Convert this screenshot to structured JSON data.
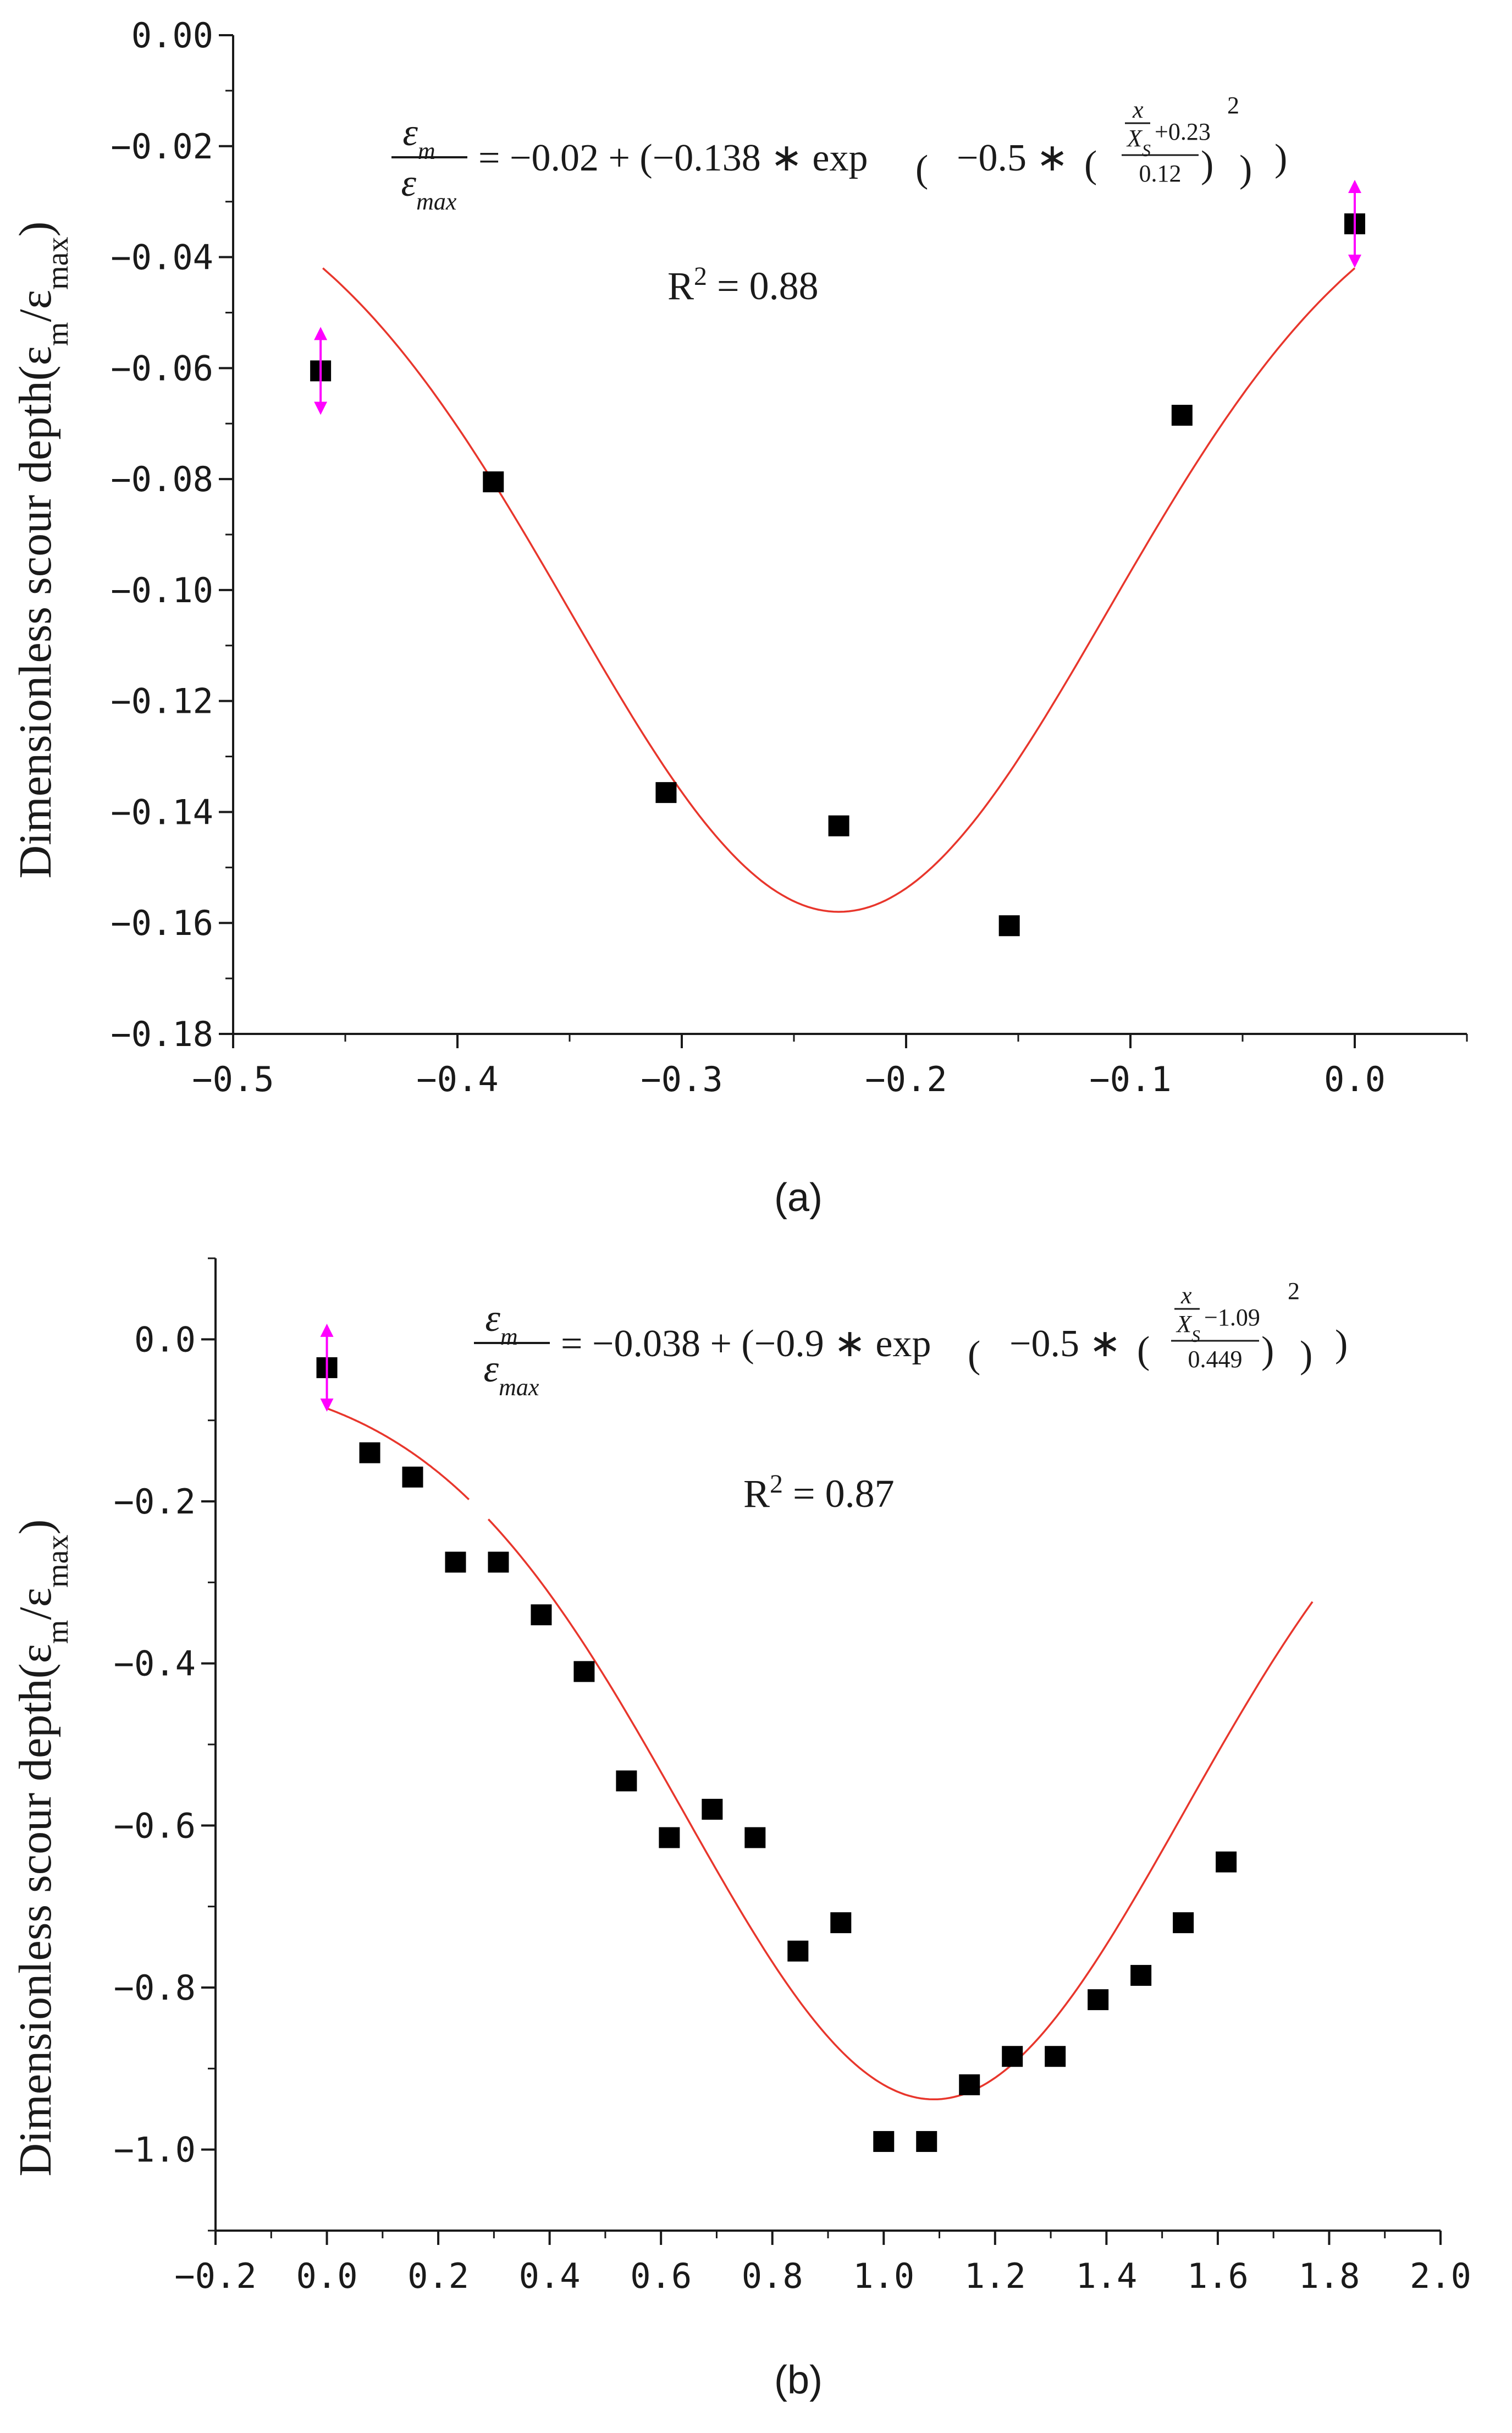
{
  "chart_data": [
    {
      "type": "scatter",
      "id": "a",
      "caption": "(a)",
      "title": "",
      "xlabel": "",
      "ylabel": "Dimensionless scour depth(ε",
      "ylabel_sub1": "m",
      "ylabel_mid": "/ε",
      "ylabel_sub2": "max",
      "ylabel_end": ")",
      "xlim": [
        -0.5,
        0.05
      ],
      "ylim": [
        -0.18,
        0.0
      ],
      "xticks": [
        -0.5,
        -0.4,
        -0.3,
        -0.2,
        -0.1,
        0.0
      ],
      "xtick_labels": [
        "−0.5",
        "−0.4",
        "−0.3",
        "−0.2",
        "−0.1",
        "0.0"
      ],
      "yticks": [
        0.0,
        -0.02,
        -0.04,
        -0.06,
        -0.08,
        -0.1,
        -0.12,
        -0.14,
        -0.16,
        -0.18
      ],
      "ytick_labels": [
        "0.00",
        "−0.02",
        "−0.04",
        "−0.06",
        "−0.08",
        "−0.10",
        "−0.12",
        "−0.14",
        "−0.16",
        "−0.18"
      ],
      "points": {
        "x": [
          -0.461,
          -0.384,
          -0.307,
          -0.23,
          -0.154,
          -0.077,
          0.0
        ],
        "y": [
          -0.0605,
          -0.0805,
          -0.1365,
          -0.1425,
          -0.1605,
          -0.0685,
          -0.034
        ]
      },
      "arrow_points": [
        [
          -0.461,
          -0.0605
        ],
        [
          0.0,
          -0.034
        ]
      ],
      "fit": {
        "a": -0.02,
        "b": -0.138,
        "mu": -0.23,
        "sigma": 0.12,
        "x_from": -0.46,
        "x_to": 0.0,
        "color": "#e8362c"
      },
      "equation": {
        "lhs_num": "ε",
        "lhs_num_sub": "m",
        "lhs_den": "ε",
        "lhs_den_sub": "max",
        "rhs_1": "= −0.02 + (−0.138 ∗ exp",
        "rhs_2": "−0.5 ∗",
        "inner_num_x": "x",
        "inner_den_X": "X",
        "inner_den_sub": "S",
        "inner_shift": "+0.23",
        "inner_den": "0.12",
        "power": "2",
        "tail": ")"
      },
      "r2_label": "R",
      "r2_sup": "2",
      "r2_value": " = 0.88"
    },
    {
      "type": "scatter",
      "id": "b",
      "caption": "(b)",
      "title": "",
      "xlabel": "",
      "ylabel": "Dimensionless scour depth(ε",
      "ylabel_sub1": "m",
      "ylabel_mid": "/ε",
      "ylabel_sub2": "max",
      "ylabel_end": ")",
      "xlim": [
        -0.2,
        2.0
      ],
      "ylim": [
        -1.1,
        0.1
      ],
      "xticks": [
        -0.2,
        0.0,
        0.2,
        0.4,
        0.6,
        0.8,
        1.0,
        1.2,
        1.4,
        1.6,
        1.8,
        2.0
      ],
      "xtick_labels": [
        "−0.2",
        "0.0",
        "0.2",
        "0.4",
        "0.6",
        "0.8",
        "1.0",
        "1.2",
        "1.4",
        "1.6",
        "1.8",
        "2.0"
      ],
      "yticks": [
        0.0,
        -0.2,
        -0.4,
        -0.6,
        -0.8,
        -1.0
      ],
      "ytick_labels": [
        "0.0",
        "−0.2",
        "−0.4",
        "−0.6",
        "−0.8",
        "−1.0"
      ],
      "points": {
        "x": [
          0.0,
          0.077,
          0.154,
          0.231,
          0.308,
          0.385,
          0.462,
          0.538,
          0.615,
          0.692,
          0.769,
          0.846,
          0.923,
          1.0,
          1.077,
          1.154,
          1.231,
          1.308,
          1.385,
          1.462,
          1.538,
          1.615
        ],
        "y": [
          -0.035,
          -0.14,
          -0.17,
          -0.275,
          -0.275,
          -0.34,
          -0.41,
          -0.545,
          -0.615,
          -0.58,
          -0.615,
          -0.755,
          -0.72,
          -0.99,
          -0.99,
          -0.92,
          -0.885,
          -0.885,
          -0.815,
          -0.785,
          -0.72,
          -0.645
        ]
      },
      "arrow_points": [
        [
          0.0,
          -0.035
        ]
      ],
      "fit": {
        "a": -0.038,
        "b": -0.9,
        "mu": 1.09,
        "sigma": 0.449,
        "x_from": 0.0,
        "x_to": 1.77,
        "gap": [
          0.255,
          0.29
        ],
        "color": "#e8362c"
      },
      "equation": {
        "lhs_num": "ε",
        "lhs_num_sub": "m",
        "lhs_den": "ε",
        "lhs_den_sub": "max",
        "rhs_1": "= −0.038 + (−0.9 ∗ exp",
        "rhs_2": "−0.5 ∗",
        "inner_num_x": "x",
        "inner_den_X": "X",
        "inner_den_sub": "S",
        "inner_shift": "−1.09",
        "inner_den": "0.449",
        "power": "2",
        "tail": ")"
      },
      "r2_label": "R",
      "r2_sup": "2",
      "r2_value": " = 0.87"
    }
  ],
  "colors": {
    "fit": "#e8362c",
    "marker": "#000000",
    "arrow": "#ff00ff",
    "axis": "#1a1a1a"
  }
}
